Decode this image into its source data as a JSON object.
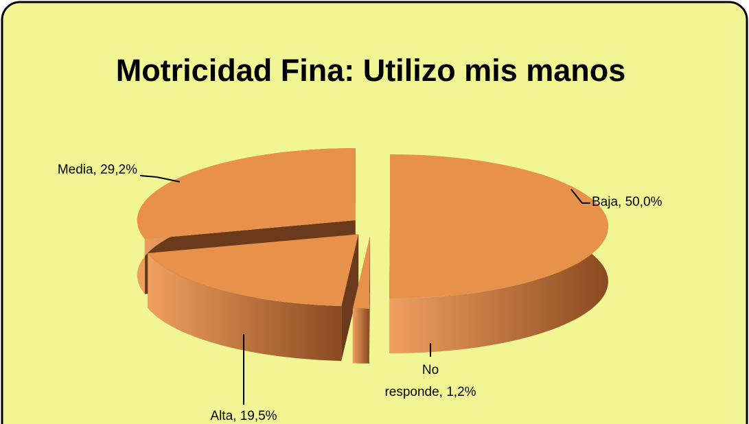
{
  "chart_data": {
    "type": "pie3d",
    "title": "Motricidad Fina: Utilizo mis manos",
    "values": [
      50.0,
      1.2,
      19.5,
      29.2
    ],
    "value_labels": [
      "Baja, 50,0%",
      "No responde, 1,2%",
      "Alta, 19,5%",
      "Media, 29,2%"
    ],
    "color": "#e8914a",
    "side_color": "#6b3a1c",
    "background": "#f2f593"
  }
}
